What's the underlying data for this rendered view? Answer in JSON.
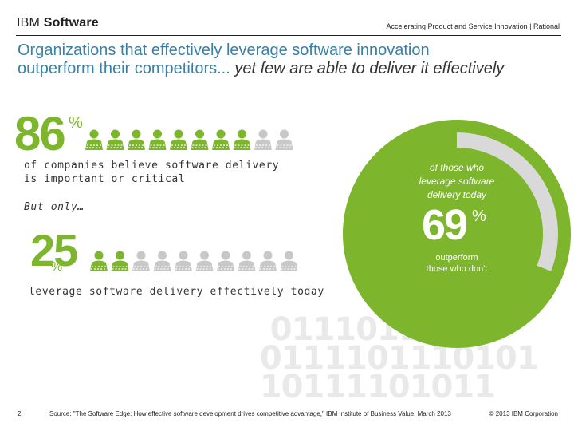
{
  "header": {
    "brand_ibm": "IBM",
    "brand_software": "Software",
    "tagline": "Accelerating Product and Service Innovation | Rational"
  },
  "title": {
    "line1": "Organizations that effectively leverage software innovation",
    "line2_start": "outperform their competitors...",
    "line2_em": " yet few are able to deliver it effectively"
  },
  "stat1": {
    "value": "86",
    "unit": "%",
    "desc_line1": "of companies believe software delivery",
    "desc_line2": "is important or critical",
    "icons_highlighted": 8,
    "icons_total": 10
  },
  "stat2": {
    "intro": "But only…",
    "value": "25",
    "unit": "%",
    "desc": "leverage software delivery effectively today",
    "icons_highlighted": 2,
    "icons_total": 10
  },
  "donut": {
    "caption_line1": "of those who",
    "caption_line2": "leverage software",
    "caption_line3": "delivery today",
    "value": "69",
    "unit": "%",
    "sub_line1": "outperform",
    "sub_line2": "those who don't",
    "fraction": 0.69
  },
  "footer": {
    "page_number": "2",
    "source": "Source: \"The Software Edge: How effective software development drives competitive advantage,\" IBM Institute of Business Value, March 2013",
    "copyright": "© 2013 IBM Corporation"
  },
  "colors": {
    "green": "#7db52d",
    "grey_icon": "#c8c8c8",
    "donut_grey": "#d9d9d9",
    "title_blue": "#3a7fa6"
  }
}
